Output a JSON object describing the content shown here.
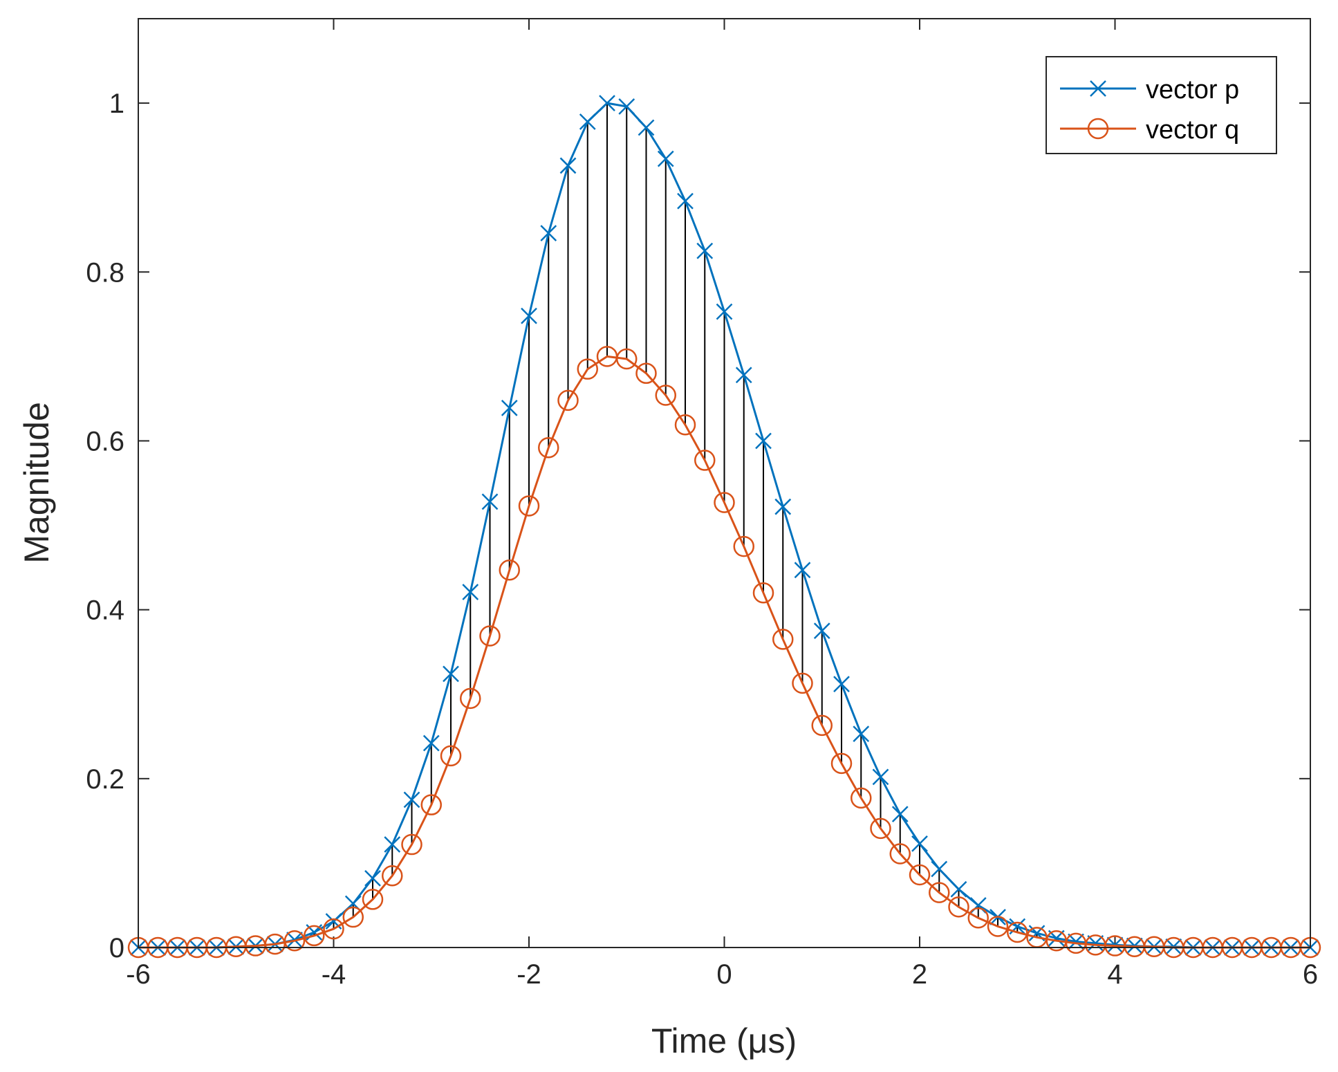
{
  "chart_data": {
    "type": "line",
    "xlabel": "Time (μs)",
    "ylabel": "Magnitude",
    "xlim": [
      -6,
      6
    ],
    "ylim": [
      0,
      1.1
    ],
    "xticks": [
      -6,
      -4,
      -2,
      0,
      2,
      4,
      6
    ],
    "yticks": [
      0,
      0.2,
      0.4,
      0.6,
      0.8,
      1
    ],
    "xtick_labels": [
      "-6",
      "-4",
      "-2",
      "0",
      "2",
      "4",
      "6"
    ],
    "ytick_labels": [
      "0",
      "0.2",
      "0.4",
      "0.6",
      "0.8",
      "1"
    ],
    "grid": false,
    "box": true,
    "legend_position": "top-right",
    "difference_stems": true,
    "x": [
      -6,
      -5.8,
      -5.6,
      -5.4,
      -5.2,
      -5,
      -4.8,
      -4.6,
      -4.4,
      -4.2,
      -4,
      -3.8,
      -3.6,
      -3.4,
      -3.2,
      -3,
      -2.8,
      -2.6,
      -2.4,
      -2.2,
      -2,
      -1.8,
      -1.6,
      -1.4,
      -1.2,
      -1,
      -0.8,
      -0.6,
      -0.4,
      -0.2,
      0,
      0.2,
      0.4,
      0.6,
      0.8,
      1,
      1.2,
      1.4,
      1.6,
      1.8,
      2,
      2.2,
      2.4,
      2.6,
      2.8,
      3,
      3.2,
      3.4,
      3.6,
      3.8,
      4,
      4.2,
      4.4,
      4.6,
      4.8,
      5,
      5.2,
      5.4,
      5.6,
      5.8,
      6
    ],
    "series": [
      {
        "name": "vector p",
        "color": "#0072BD",
        "marker": "x",
        "values": [
          0,
          0,
          0,
          0,
          0,
          0.001,
          0.002,
          0.004,
          0.009,
          0.018,
          0.031,
          0.052,
          0.082,
          0.122,
          0.175,
          0.242,
          0.324,
          0.421,
          0.528,
          0.639,
          0.748,
          0.846,
          0.926,
          0.978,
          1.0,
          0.996,
          0.971,
          0.934,
          0.884,
          0.825,
          0.753,
          0.678,
          0.6,
          0.522,
          0.447,
          0.375,
          0.312,
          0.253,
          0.202,
          0.158,
          0.123,
          0.093,
          0.069,
          0.05,
          0.036,
          0.025,
          0.017,
          0.011,
          0.007,
          0.005,
          0.003,
          0.002,
          0.001,
          0.001,
          0,
          0,
          0,
          0,
          0,
          0,
          0
        ]
      },
      {
        "name": "vector q",
        "color": "#D95319",
        "marker": "o",
        "values": [
          0,
          0,
          0,
          0,
          0,
          0.001,
          0.002,
          0.004,
          0.008,
          0.014,
          0.022,
          0.036,
          0.057,
          0.085,
          0.122,
          0.169,
          0.227,
          0.295,
          0.369,
          0.447,
          0.523,
          0.592,
          0.648,
          0.685,
          0.7,
          0.697,
          0.68,
          0.654,
          0.619,
          0.577,
          0.527,
          0.475,
          0.42,
          0.365,
          0.313,
          0.263,
          0.218,
          0.177,
          0.141,
          0.111,
          0.086,
          0.065,
          0.048,
          0.035,
          0.025,
          0.018,
          0.012,
          0.008,
          0.005,
          0.003,
          0.002,
          0.001,
          0.001,
          0,
          0,
          0,
          0,
          0,
          0,
          0,
          0
        ]
      }
    ]
  }
}
